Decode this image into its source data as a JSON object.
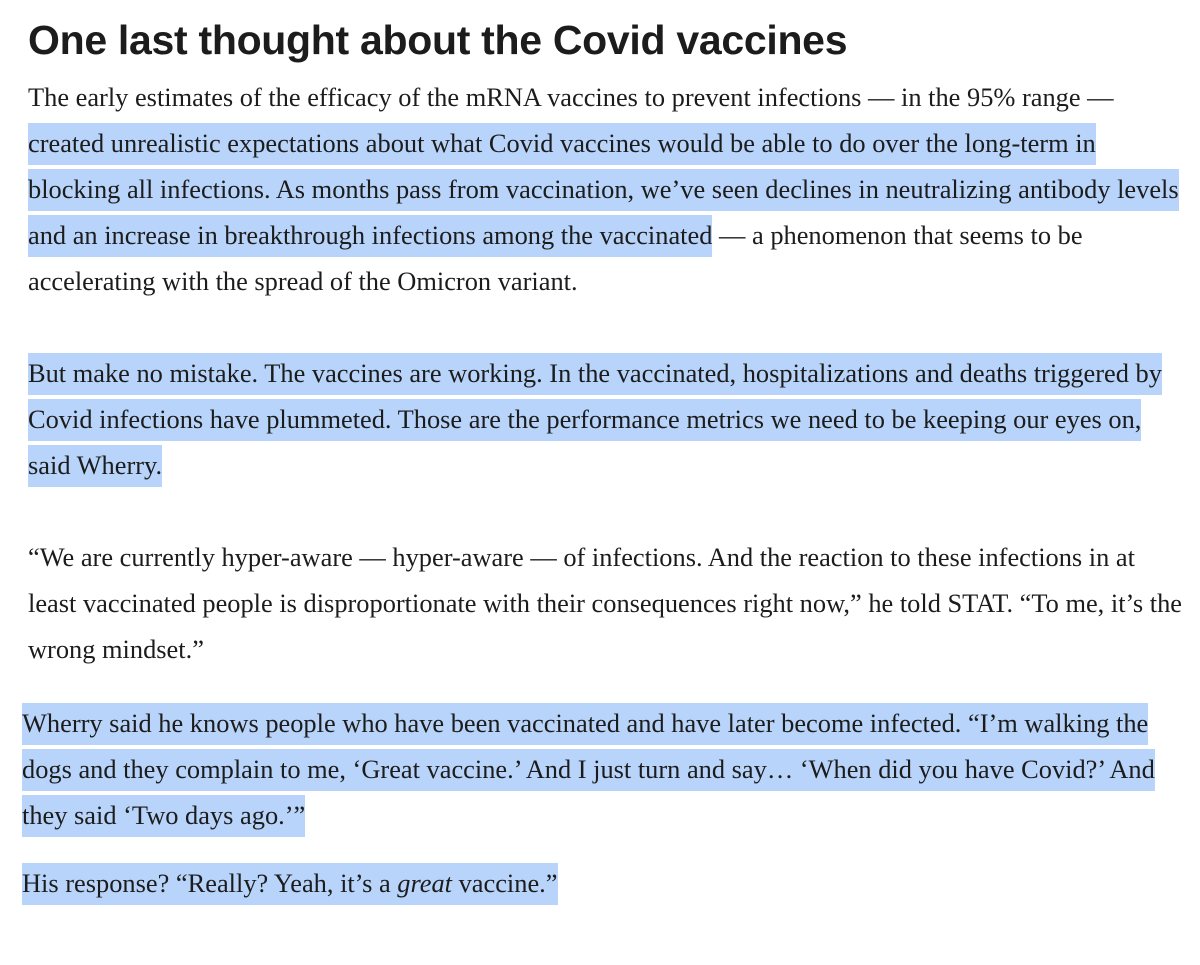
{
  "article": {
    "heading": "One last thought about the Covid vaccines",
    "p1": {
      "lead": "The early estimates of the efficacy of the mRNA vaccines to prevent infections — in the 95% range — ",
      "highlighted": "created unrealistic expectations about what Covid vaccines would be able to do over the long-term in blocking all infections. As months pass from vaccination, we’ve seen declines in neutralizing antibody levels and an increase in breakthrough infections among the vaccinated",
      "tail": " — a phenomenon that seems to be accelerating with the spread of the Omicron variant."
    },
    "p2": {
      "highlighted": "But make no mistake. The vaccines are working. In the vaccinated, hospitalizations and deaths triggered by Covid infections have plummeted. Those are the performance metrics we need to be keeping our eyes on, said Wherry."
    },
    "p3": {
      "text": "“We are currently hyper-aware — hyper-aware — of infections. And the reaction to these infections in at least vaccinated people is disproportionate with their consequences right now,” he told STAT. “To me, it’s the wrong mindset.”"
    },
    "p4": {
      "highlighted": "Wherry said he knows people who have been vaccinated and have later become infected. “I’m walking the dogs and they complain to me, ‘Great vaccine.’ And I just turn and say… ‘When did you have Covid?’ And they said ‘Two days ago.’”"
    },
    "p5": {
      "before": "His response? “Really? Yeah, it’s a ",
      "emphasis": "great",
      "after": " vaccine.”"
    }
  },
  "colors": {
    "highlight": "#b8d4fa",
    "text": "#1c1c1c",
    "background": "#ffffff"
  }
}
